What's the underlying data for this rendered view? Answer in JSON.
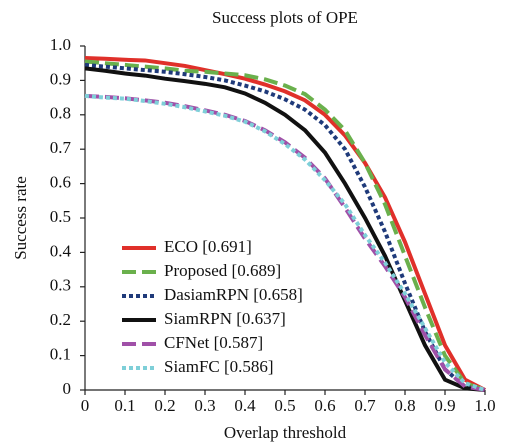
{
  "chart_data": {
    "type": "line",
    "title": "Success plots of OPE",
    "x_label": "Overlap threshold",
    "y_label": "Success rate",
    "x": [
      0,
      0.05,
      0.1,
      0.15,
      0.2,
      0.25,
      0.3,
      0.35,
      0.4,
      0.45,
      0.5,
      0.55,
      0.6,
      0.65,
      0.7,
      0.75,
      0.8,
      0.85,
      0.9,
      0.95,
      1.0
    ],
    "series": [
      {
        "name": "ECO [0.691]",
        "color": "#e0302a",
        "dash": "solid",
        "values": [
          0.965,
          0.963,
          0.96,
          0.958,
          0.95,
          0.942,
          0.93,
          0.918,
          0.905,
          0.888,
          0.868,
          0.842,
          0.8,
          0.74,
          0.66,
          0.56,
          0.43,
          0.28,
          0.13,
          0.03,
          0.0
        ]
      },
      {
        "name": "Proposed [0.689]",
        "color": "#6ab04c",
        "dash": "dashed",
        "values": [
          0.955,
          0.95,
          0.945,
          0.94,
          0.935,
          0.928,
          0.925,
          0.92,
          0.915,
          0.903,
          0.885,
          0.86,
          0.815,
          0.755,
          0.66,
          0.54,
          0.39,
          0.24,
          0.1,
          0.02,
          0.0
        ]
      },
      {
        "name": "DasiamRPN [0.658]",
        "color": "#1f3a7a",
        "dash": "dotted",
        "values": [
          0.945,
          0.94,
          0.935,
          0.93,
          0.925,
          0.918,
          0.91,
          0.9,
          0.885,
          0.868,
          0.845,
          0.815,
          0.77,
          0.7,
          0.59,
          0.46,
          0.31,
          0.17,
          0.06,
          0.01,
          0.0
        ]
      },
      {
        "name": "SiamRPN [0.637]",
        "color": "#111111",
        "dash": "solid",
        "values": [
          0.935,
          0.928,
          0.92,
          0.914,
          0.905,
          0.898,
          0.89,
          0.88,
          0.862,
          0.835,
          0.8,
          0.755,
          0.69,
          0.6,
          0.5,
          0.39,
          0.26,
          0.13,
          0.03,
          0.005,
          0.0
        ]
      },
      {
        "name": "CFNet [0.587]",
        "color": "#a050a8",
        "dash": "dashed",
        "values": [
          0.855,
          0.852,
          0.848,
          0.842,
          0.835,
          0.825,
          0.813,
          0.8,
          0.782,
          0.755,
          0.72,
          0.675,
          0.615,
          0.53,
          0.44,
          0.36,
          0.27,
          0.16,
          0.06,
          0.01,
          0.0
        ]
      },
      {
        "name": "SiamFC [0.586]",
        "color": "#7ecfd8",
        "dash": "dotted",
        "values": [
          0.855,
          0.85,
          0.847,
          0.84,
          0.832,
          0.822,
          0.81,
          0.797,
          0.78,
          0.752,
          0.715,
          0.67,
          0.61,
          0.54,
          0.45,
          0.37,
          0.28,
          0.18,
          0.08,
          0.02,
          0.0
        ]
      }
    ],
    "xlim": [
      0,
      1
    ],
    "ylim": [
      0,
      1
    ],
    "xticks": [
      0,
      0.1,
      0.2,
      0.3,
      0.4,
      0.5,
      0.6,
      0.7,
      0.8,
      0.9,
      {
        "value": 1,
        "label": "1.0"
      }
    ],
    "yticks": [
      0,
      0.1,
      0.2,
      0.3,
      0.4,
      0.5,
      0.6,
      0.7,
      0.8,
      0.9,
      {
        "value": 1,
        "label": "1.0"
      }
    ],
    "grid": false,
    "legend": "lower left"
  }
}
